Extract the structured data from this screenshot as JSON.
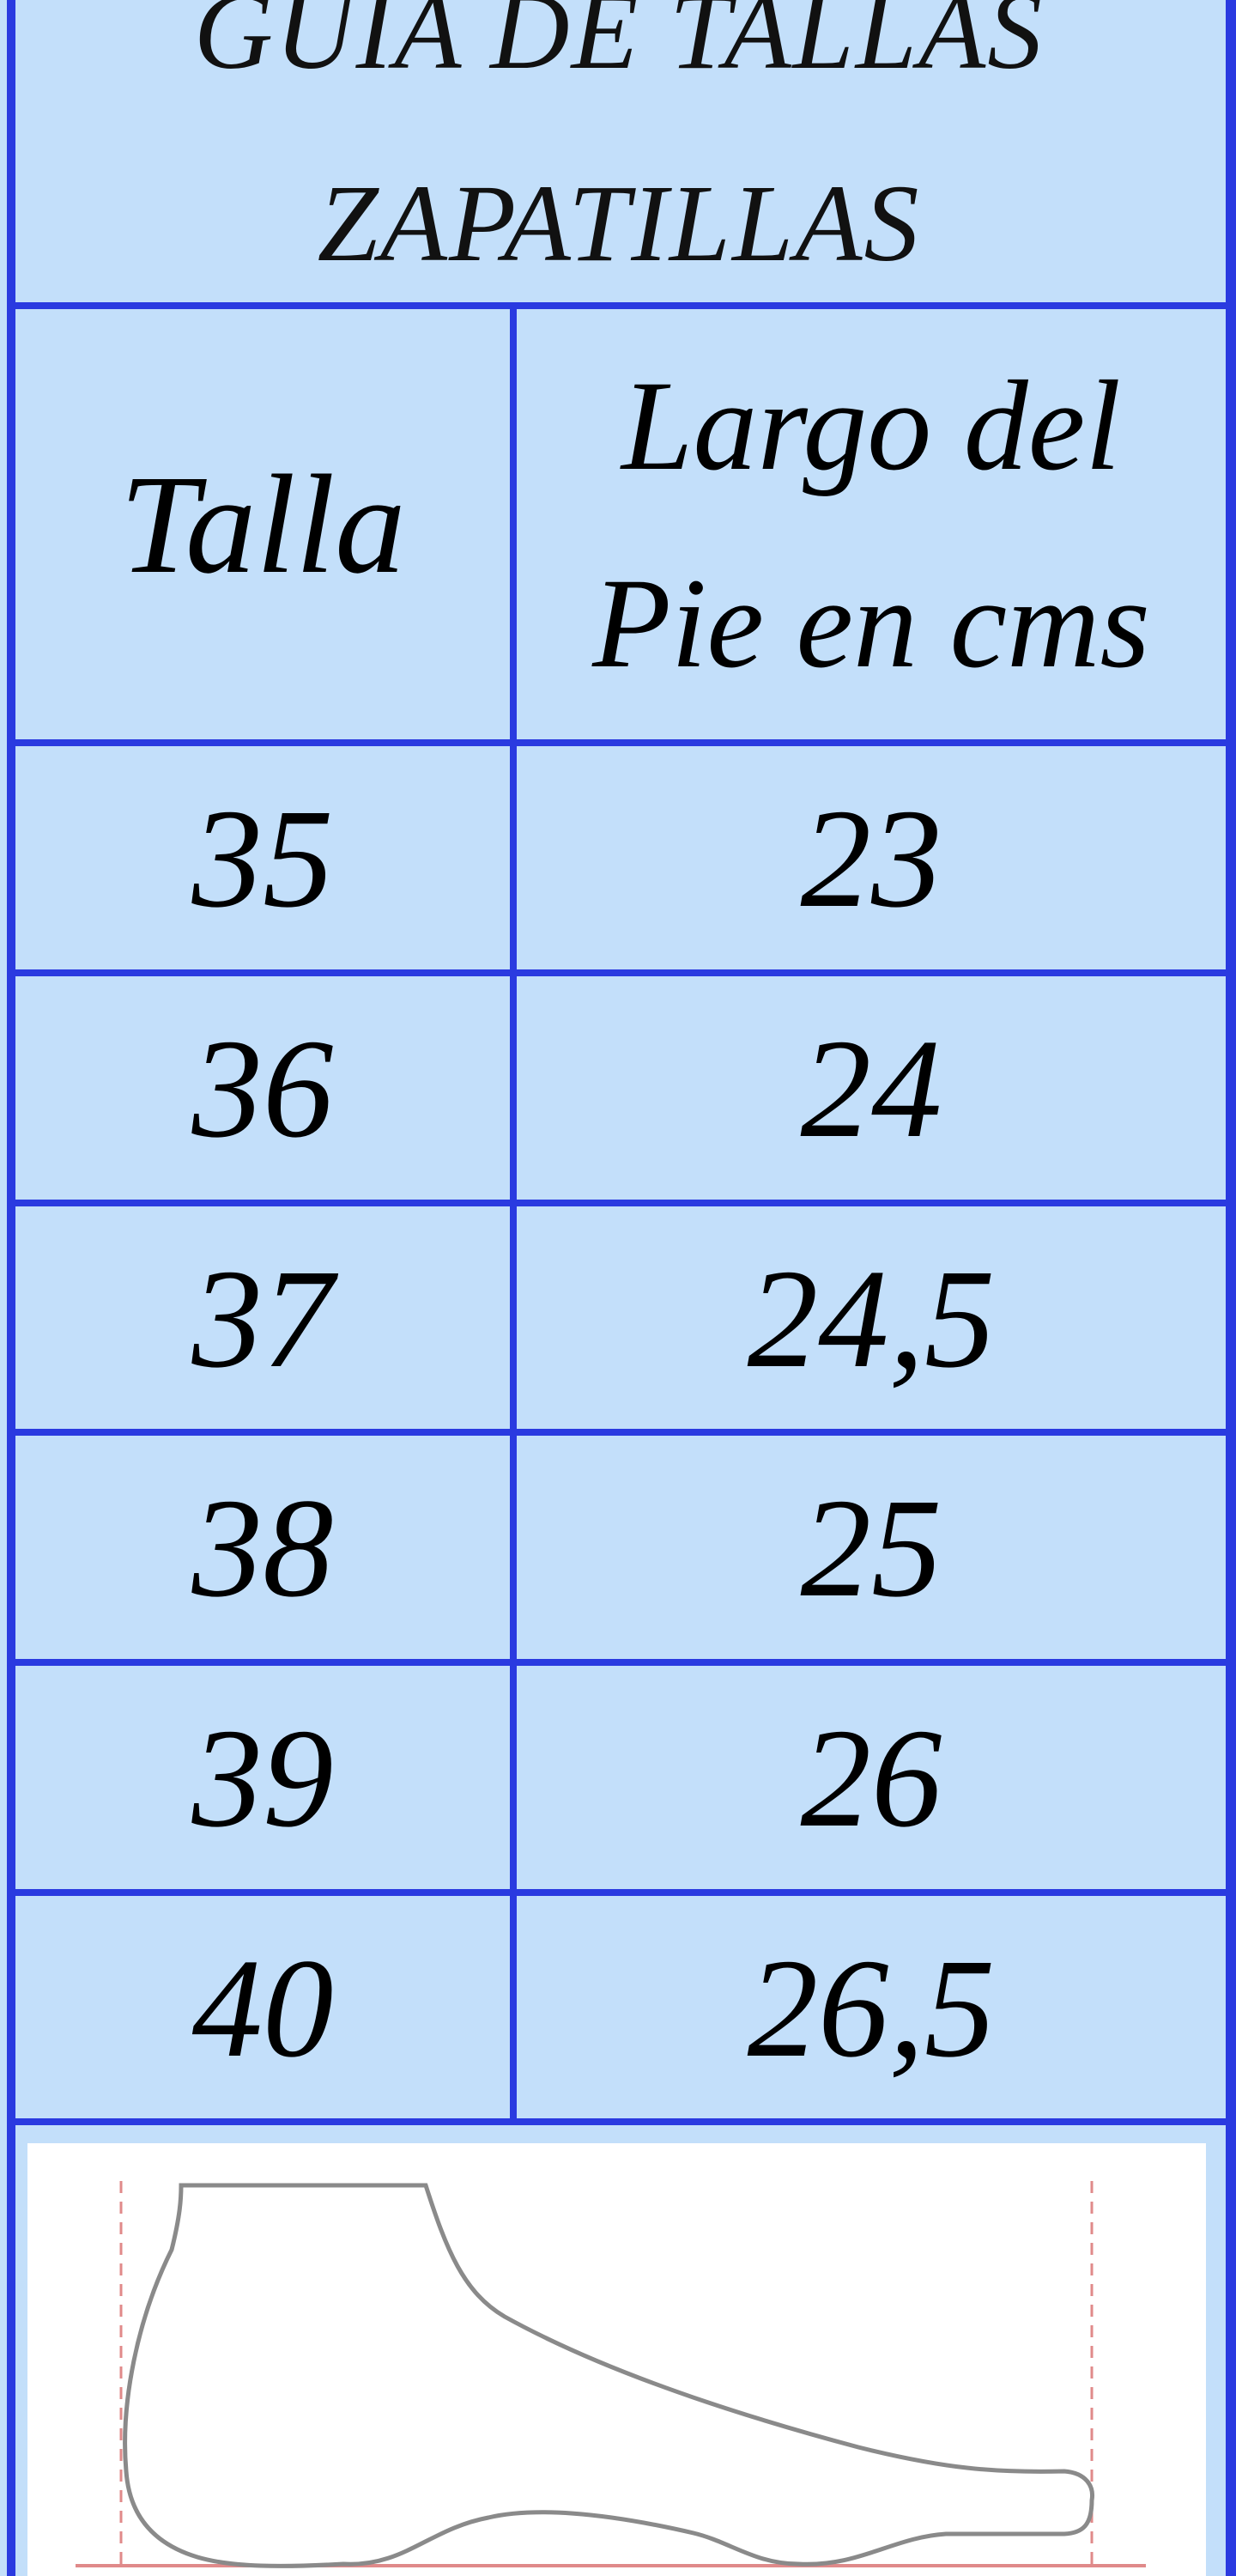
{
  "title": {
    "line1": "GUIA DE TALLAS",
    "line2": "ZAPATILLAS"
  },
  "headers": {
    "size": "Talla",
    "length_line1": "Largo del",
    "length_line2": "Pie en cms"
  },
  "rows": [
    {
      "size": "35",
      "length": "23"
    },
    {
      "size": "36",
      "length": "24"
    },
    {
      "size": "37",
      "length": "24,5"
    },
    {
      "size": "38",
      "length": "25"
    },
    {
      "size": "39",
      "length": "26"
    },
    {
      "size": "40",
      "length": "26,5"
    }
  ],
  "colors": {
    "border": "#2a3ae0",
    "cell_background": "#c3dffa",
    "foot_outline": "#8a8a8a",
    "guide_lines": "#e08a8a"
  },
  "illustration": "foot-outline-icon"
}
